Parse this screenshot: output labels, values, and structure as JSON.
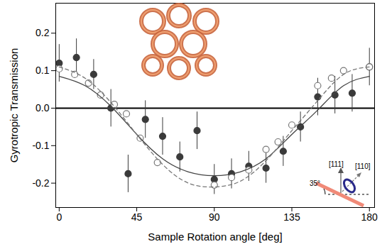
{
  "chart_data": {
    "type": "scatter",
    "xlabel": "Sample Rotation angle [deg]",
    "ylabel": "Gyrotropic Transmission",
    "xlim": [
      -2,
      183
    ],
    "ylim": [
      -0.265,
      0.28
    ],
    "xticks": [
      0,
      45,
      90,
      135,
      180
    ],
    "yticks": [
      -0.2,
      -0.1,
      {
        "value": 0,
        "label": "0.0"
      },
      0.1,
      0.2
    ],
    "annotations": [
      "[111]",
      "[110]",
      "35°"
    ],
    "series": [
      {
        "type": "scatter",
        "marker": "filled-circle",
        "color": "#3a3a3a",
        "x": [
          0,
          10,
          20,
          30,
          40,
          50,
          60,
          70,
          80,
          90,
          100,
          110,
          120,
          130,
          140,
          150,
          160,
          170,
          180
        ],
        "values": [
          0.12,
          0.135,
          0.09,
          0.0,
          -0.175,
          -0.03,
          -0.075,
          -0.13,
          -0.06,
          -0.19,
          -0.175,
          -0.155,
          -0.16,
          -0.115,
          -0.05,
          0.03,
          0.035,
          0.04,
          0.11
        ],
        "errors": [
          0.05,
          0.05,
          0.04,
          0.05,
          0.05,
          0.05,
          0.05,
          0.04,
          0.05,
          0.04,
          0.04,
          0.04,
          0.04,
          0.04,
          0.04,
          0.05,
          0.05,
          0.05,
          0.05
        ]
      },
      {
        "type": "scatter",
        "marker": "open-circle",
        "color": "#777777",
        "x": [
          0,
          9,
          17,
          24,
          32,
          39,
          47,
          57,
          90,
          100,
          110,
          120,
          127,
          135,
          150,
          158,
          165,
          180
        ],
        "values": [
          0.105,
          0.09,
          0.067,
          0.035,
          0.01,
          -0.015,
          -0.08,
          -0.145,
          -0.205,
          -0.185,
          -0.165,
          -0.11,
          -0.09,
          -0.045,
          0.06,
          0.08,
          0.1,
          0.11
        ]
      },
      {
        "type": "line",
        "line_style": "solid",
        "color": "#444444",
        "x": [
          0,
          15,
          30,
          45,
          60,
          75,
          90,
          105,
          120,
          135,
          150,
          165,
          180
        ],
        "values": [
          0.085,
          0.06,
          0.005,
          -0.07,
          -0.135,
          -0.17,
          -0.18,
          -0.17,
          -0.135,
          -0.07,
          -0.005,
          0.06,
          0.085
        ]
      },
      {
        "type": "line",
        "line_style": "dashed",
        "color": "#777777",
        "x": [
          0,
          15,
          30,
          45,
          60,
          75,
          90,
          105,
          120,
          135,
          150,
          165,
          180
        ],
        "values": [
          0.11,
          0.08,
          0.015,
          -0.07,
          -0.15,
          -0.2,
          -0.21,
          -0.195,
          -0.14,
          -0.06,
          0.02,
          0.09,
          0.11
        ]
      }
    ]
  }
}
